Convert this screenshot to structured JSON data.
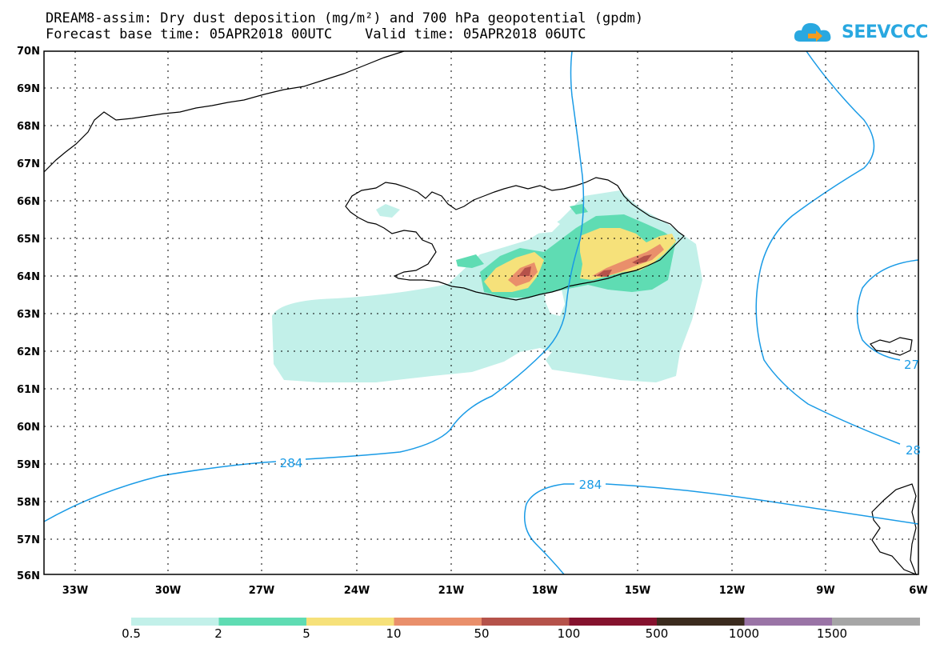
{
  "header": {
    "title_line1": "DREAM8-assim: Dry dust deposition (mg/m²) and 700 hPa geopotential (gpdm)",
    "title_line2": "Forecast base time: 05APR2018 00UTC    Valid time: 05APR2018 06UTC"
  },
  "logo": {
    "text": "SEEVCCC",
    "icon": "cloud-icon",
    "color": "#29a8e0"
  },
  "map": {
    "lat_labels": [
      "70N",
      "69N",
      "68N",
      "67N",
      "66N",
      "65N",
      "64N",
      "63N",
      "62N",
      "61N",
      "60N",
      "59N",
      "58N",
      "57N",
      "56N"
    ],
    "lon_labels": [
      "33W",
      "30W",
      "27W",
      "24W",
      "21W",
      "18W",
      "15W",
      "12W",
      "9W",
      "6W"
    ],
    "contour_labels": [
      "284",
      "284",
      "27",
      "28"
    ],
    "contour_color": "#1a9be6",
    "dust_colors": {
      "c0_5": "#c2f0e9",
      "c2": "#5fdcb3",
      "c5": "#f6e17a",
      "c10": "#e98f6b",
      "c50": "#b5524a"
    }
  },
  "colorbar": {
    "colors": [
      "#c2f0e9",
      "#5fdcb3",
      "#f6e17a",
      "#e98f6b",
      "#b5524a",
      "#85122e",
      "#3b2b1e",
      "#9a74a6",
      "#a6a6a6"
    ],
    "labels": [
      "0.5",
      "2",
      "5",
      "10",
      "50",
      "100",
      "500",
      "1000",
      "1500"
    ]
  }
}
